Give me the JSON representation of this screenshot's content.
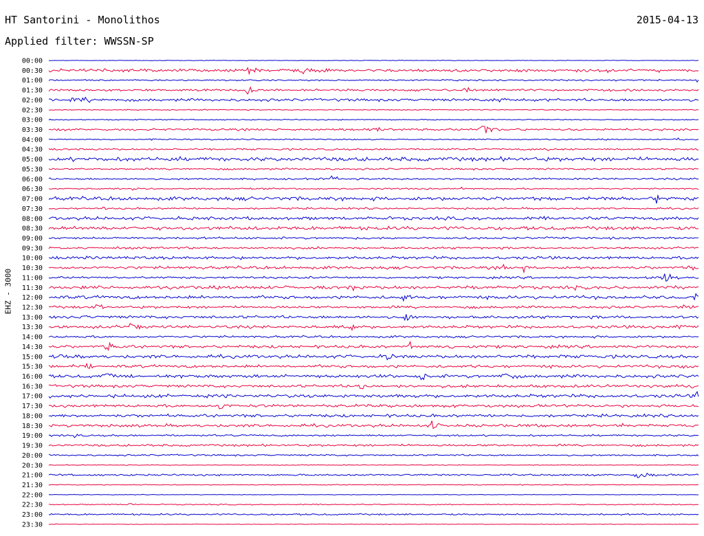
{
  "header": {
    "station": "HT Santorini - Monolithos",
    "date": "2015-04-13",
    "filter": "Applied filter: WWSSN-SP"
  },
  "chart_data": {
    "type": "line",
    "title": "HT Santorini - Monolithos",
    "ylabel": "EHZ - 3000",
    "colors": {
      "even": "#0000cc",
      "odd": "#e6003c"
    },
    "rows": [
      {
        "label": "00:00",
        "noise": 0.3,
        "events": []
      },
      {
        "label": "00:30",
        "noise": 1.6,
        "events": [
          {
            "t": 0.074,
            "amp": 6,
            "width": 0.002
          },
          {
            "t": 0.17,
            "amp": 4,
            "width": 0.004
          },
          {
            "t": 0.31,
            "amp": 5,
            "width": 0.01
          },
          {
            "t": 0.39,
            "amp": 4,
            "width": 0.02
          },
          {
            "t": 0.86,
            "amp": 3,
            "width": 0.004
          },
          {
            "t": 0.935,
            "amp": 4,
            "width": 0.003
          }
        ]
      },
      {
        "label": "01:00",
        "noise": 0.8,
        "events": [
          {
            "t": 0.998,
            "amp": 3,
            "width": 0.002
          }
        ]
      },
      {
        "label": "01:30",
        "noise": 1.2,
        "events": [
          {
            "t": 0.307,
            "amp": 7,
            "width": 0.006
          },
          {
            "t": 0.36,
            "amp": 3,
            "width": 0.004
          },
          {
            "t": 0.64,
            "amp": 5,
            "width": 0.006
          }
        ]
      },
      {
        "label": "02:00",
        "noise": 1.5,
        "events": [
          {
            "t": 0.05,
            "amp": 3,
            "width": 0.02
          },
          {
            "t": 0.69,
            "amp": 3,
            "width": 0.02
          }
        ]
      },
      {
        "label": "02:30",
        "noise": 0.5,
        "events": []
      },
      {
        "label": "03:00",
        "noise": 0.6,
        "events": []
      },
      {
        "label": "03:30",
        "noise": 1.2,
        "events": [
          {
            "t": 0.5,
            "amp": 3,
            "width": 0.02
          },
          {
            "t": 0.67,
            "amp": 9,
            "width": 0.012
          }
        ]
      },
      {
        "label": "04:00",
        "noise": 0.7,
        "events": [
          {
            "t": 0.97,
            "amp": 3,
            "width": 0.006
          }
        ]
      },
      {
        "label": "04:30",
        "noise": 1.0,
        "events": [
          {
            "t": 0.62,
            "amp": 4,
            "width": 0.002
          },
          {
            "t": 0.77,
            "amp": 3,
            "width": 0.004
          }
        ]
      },
      {
        "label": "05:00",
        "noise": 2.2,
        "events": []
      },
      {
        "label": "05:30",
        "noise": 1.0,
        "events": []
      },
      {
        "label": "06:00",
        "noise": 1.0,
        "events": [
          {
            "t": 0.437,
            "amp": 6,
            "width": 0.006
          }
        ]
      },
      {
        "label": "06:30",
        "noise": 0.8,
        "events": [
          {
            "t": 0.128,
            "amp": 4,
            "width": 0.008
          },
          {
            "t": 0.635,
            "amp": 3,
            "width": 0.003
          }
        ]
      },
      {
        "label": "07:00",
        "noise": 2.0,
        "events": [
          {
            "t": 0.935,
            "amp": 6,
            "width": 0.004
          }
        ]
      },
      {
        "label": "07:30",
        "noise": 1.0,
        "events": [
          {
            "t": 0.085,
            "amp": 3,
            "width": 0.004
          }
        ]
      },
      {
        "label": "08:00",
        "noise": 1.8,
        "events": []
      },
      {
        "label": "08:30",
        "noise": 2.0,
        "events": []
      },
      {
        "label": "09:00",
        "noise": 1.2,
        "events": []
      },
      {
        "label": "09:30",
        "noise": 1.2,
        "events": []
      },
      {
        "label": "10:00",
        "noise": 1.6,
        "events": []
      },
      {
        "label": "10:30",
        "noise": 1.6,
        "events": [
          {
            "t": 0.36,
            "amp": 7,
            "width": 0.001
          },
          {
            "t": 0.64,
            "amp": 6,
            "width": 0.001
          },
          {
            "t": 0.7,
            "amp": 6,
            "width": 0.001
          },
          {
            "t": 0.73,
            "amp": 9,
            "width": 0.002
          },
          {
            "t": 0.985,
            "amp": 5,
            "width": 0.012
          }
        ]
      },
      {
        "label": "11:00",
        "noise": 1.2,
        "events": [
          {
            "t": 0.95,
            "amp": 7,
            "width": 0.012
          }
        ]
      },
      {
        "label": "11:30",
        "noise": 1.8,
        "events": [
          {
            "t": 0.47,
            "amp": 6,
            "width": 0.006
          },
          {
            "t": 0.66,
            "amp": 6,
            "width": 0.002
          },
          {
            "t": 0.81,
            "amp": 5,
            "width": 0.002
          }
        ]
      },
      {
        "label": "12:00",
        "noise": 1.8,
        "events": [
          {
            "t": 0.545,
            "amp": 7,
            "width": 0.006
          },
          {
            "t": 0.995,
            "amp": 7,
            "width": 0.008
          }
        ]
      },
      {
        "label": "12:30",
        "noise": 1.4,
        "events": [
          {
            "t": 0.075,
            "amp": 5,
            "width": 0.008
          },
          {
            "t": 0.975,
            "amp": 6,
            "width": 0.008
          }
        ]
      },
      {
        "label": "13:00",
        "noise": 1.6,
        "events": [
          {
            "t": 0.048,
            "amp": 6,
            "width": 0.006
          },
          {
            "t": 0.55,
            "amp": 6,
            "width": 0.006
          }
        ]
      },
      {
        "label": "13:30",
        "noise": 1.6,
        "events": [
          {
            "t": 0.128,
            "amp": 8,
            "width": 0.008
          },
          {
            "t": 0.465,
            "amp": 6,
            "width": 0.006
          },
          {
            "t": 0.97,
            "amp": 5,
            "width": 0.012
          }
        ]
      },
      {
        "label": "14:00",
        "noise": 1.2,
        "events": []
      },
      {
        "label": "14:30",
        "noise": 1.6,
        "events": [
          {
            "t": 0.09,
            "amp": 8,
            "width": 0.006
          },
          {
            "t": 0.556,
            "amp": 8,
            "width": 0.004
          },
          {
            "t": 0.62,
            "amp": 5,
            "width": 0.008
          }
        ]
      },
      {
        "label": "15:00",
        "noise": 1.8,
        "events": [
          {
            "t": 0.02,
            "amp": 5,
            "width": 0.008
          },
          {
            "t": 0.52,
            "amp": 6,
            "width": 0.008
          }
        ]
      },
      {
        "label": "15:30",
        "noise": 1.6,
        "events": [
          {
            "t": 0.036,
            "amp": 8,
            "width": 0.001
          },
          {
            "t": 0.06,
            "amp": 5,
            "width": 0.006
          },
          {
            "t": 0.98,
            "amp": 4,
            "width": 0.012
          }
        ]
      },
      {
        "label": "16:00",
        "noise": 1.8,
        "events": [
          {
            "t": 0.088,
            "amp": 7,
            "width": 0.006
          },
          {
            "t": 0.575,
            "amp": 7,
            "width": 0.008
          },
          {
            "t": 0.7,
            "amp": 7,
            "width": 0.008
          }
        ]
      },
      {
        "label": "16:30",
        "noise": 1.6,
        "events": [
          {
            "t": 0.48,
            "amp": 9,
            "width": 0.004
          },
          {
            "t": 0.99,
            "amp": 4,
            "width": 0.006
          }
        ]
      },
      {
        "label": "17:00",
        "noise": 1.8,
        "events": [
          {
            "t": 0.005,
            "amp": 5,
            "width": 0.004
          },
          {
            "t": 0.535,
            "amp": 6,
            "width": 0.001
          },
          {
            "t": 0.565,
            "amp": 5,
            "width": 0.001
          },
          {
            "t": 0.998,
            "amp": 6,
            "width": 0.004
          }
        ]
      },
      {
        "label": "17:30",
        "noise": 1.6,
        "events": [
          {
            "t": 0.263,
            "amp": 8,
            "width": 0.006
          }
        ]
      },
      {
        "label": "18:00",
        "noise": 1.6,
        "events": []
      },
      {
        "label": "18:30",
        "noise": 1.6,
        "events": [
          {
            "t": 0.59,
            "amp": 7,
            "width": 0.006
          },
          {
            "t": 0.885,
            "amp": 3,
            "width": 0.006
          }
        ]
      },
      {
        "label": "19:00",
        "noise": 1.0,
        "events": [
          {
            "t": 0.04,
            "amp": 3,
            "width": 0.006
          }
        ]
      },
      {
        "label": "19:30",
        "noise": 1.2,
        "events": []
      },
      {
        "label": "20:00",
        "noise": 0.9,
        "events": []
      },
      {
        "label": "20:30",
        "noise": 0.4,
        "events": []
      },
      {
        "label": "21:00",
        "noise": 1.0,
        "events": [
          {
            "t": 0.91,
            "amp": 6,
            "width": 0.012
          }
        ]
      },
      {
        "label": "21:30",
        "noise": 0.5,
        "events": []
      },
      {
        "label": "22:00",
        "noise": 0.3,
        "events": []
      },
      {
        "label": "22:30",
        "noise": 0.6,
        "events": [
          {
            "t": 0.125,
            "amp": 3,
            "width": 0.004
          }
        ]
      },
      {
        "label": "23:00",
        "noise": 0.9,
        "events": []
      },
      {
        "label": "23:30",
        "noise": 0.3,
        "events": []
      }
    ]
  }
}
